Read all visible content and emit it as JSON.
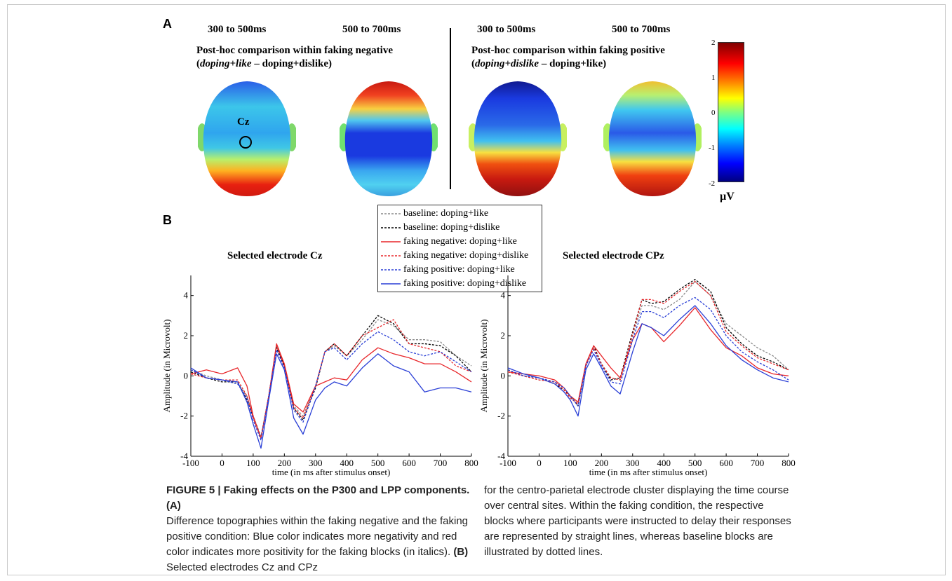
{
  "panel_a": {
    "letter": "A",
    "time_labels": [
      "300 to 500ms",
      "500 to 700ms",
      "300 to 500ms",
      "500 to 700ms"
    ],
    "left_title_line1": "Post-hoc comparison within faking negative",
    "left_title_italic": "doping+like",
    "left_title_rest": " – doping+dislike)",
    "right_title_line1": "Post-hoc comparison within faking positive",
    "right_title_italic": "doping+dislike",
    "right_title_rest": " – doping+like)",
    "electrode_marker": "Cz",
    "colorbar": {
      "ticks": [
        "2",
        "1",
        "0",
        "-1",
        "-2"
      ],
      "unit": "µV"
    }
  },
  "panel_b": {
    "letter": "B",
    "legend": [
      {
        "label": "baseline: doping+like",
        "color": "#888888",
        "dash": "dotted"
      },
      {
        "label": "baseline: doping+dislike",
        "color": "#000000",
        "dash": "dotted"
      },
      {
        "label": "faking negative: doping+like",
        "color": "#e8262a",
        "dash": "solid"
      },
      {
        "label": "faking negative: doping+dislike",
        "color": "#e8262a",
        "dash": "dotted"
      },
      {
        "label": "faking positive: doping+like",
        "color": "#2a3fd6",
        "dash": "dotted"
      },
      {
        "label": "faking positive: doping+dislike",
        "color": "#2a3fd6",
        "dash": "solid"
      }
    ]
  },
  "chart_data": [
    {
      "type": "line",
      "title": "Selected electrode Cz",
      "xlabel": "time (in ms after stimulus onset)",
      "ylabel": "Amplitude (in Microvolt)",
      "xlim": [
        -100,
        800
      ],
      "ylim": [
        -4,
        5
      ],
      "xticks": [
        "-100",
        "0",
        "100",
        "200",
        "300",
        "400",
        "500",
        "600",
        "700",
        "800"
      ],
      "yticks": [
        "4",
        "2",
        "0",
        "-2",
        "-4"
      ],
      "x": [
        -100,
        -50,
        0,
        50,
        80,
        100,
        125,
        150,
        175,
        200,
        230,
        260,
        300,
        330,
        360,
        400,
        450,
        500,
        550,
        600,
        650,
        700,
        750,
        800
      ],
      "series": [
        {
          "name": "baseline: doping+like",
          "values": [
            0.3,
            0.0,
            -0.2,
            -0.4,
            -1.0,
            -2.0,
            -3.0,
            -1.0,
            1.5,
            0.5,
            -1.5,
            -2.0,
            -0.5,
            1.2,
            1.5,
            1.0,
            1.8,
            2.8,
            2.5,
            1.8,
            1.8,
            1.7,
            1.0,
            0.5
          ]
        },
        {
          "name": "baseline: doping+dislike",
          "values": [
            0.2,
            -0.1,
            -0.3,
            -0.3,
            -1.2,
            -2.0,
            -3.1,
            -1.0,
            1.4,
            0.5,
            -1.6,
            -2.2,
            -0.6,
            1.2,
            1.6,
            1.0,
            2.0,
            3.0,
            2.6,
            1.6,
            1.6,
            1.5,
            1.0,
            0.2
          ]
        },
        {
          "name": "faking negative: doping+like",
          "values": [
            0.1,
            0.3,
            0.1,
            0.4,
            -0.5,
            -2.0,
            -3.1,
            -1.0,
            1.6,
            0.6,
            -1.4,
            -1.8,
            -0.5,
            -0.3,
            -0.1,
            -0.2,
            0.8,
            1.4,
            1.1,
            0.9,
            0.6,
            0.6,
            0.2,
            -0.3
          ]
        },
        {
          "name": "faking negative: doping+dislike",
          "values": [
            0.1,
            -0.1,
            -0.2,
            -0.2,
            -1.0,
            -2.1,
            -3.1,
            -1.0,
            1.5,
            0.5,
            -1.6,
            -2.1,
            -0.5,
            1.2,
            1.6,
            1.0,
            2.0,
            2.4,
            2.8,
            1.6,
            1.4,
            1.2,
            0.5,
            0.2
          ]
        },
        {
          "name": "faking positive: doping+like",
          "values": [
            0.3,
            -0.1,
            -0.2,
            -0.4,
            -1.1,
            -2.2,
            -3.2,
            -1.0,
            1.3,
            0.4,
            -1.7,
            -2.3,
            -0.5,
            1.2,
            1.4,
            0.8,
            1.6,
            2.2,
            1.8,
            1.2,
            1.0,
            1.2,
            0.7,
            0.2
          ]
        },
        {
          "name": "faking positive: doping+dislike",
          "values": [
            0.4,
            -0.1,
            -0.2,
            -0.3,
            -1.3,
            -2.4,
            -3.6,
            -1.2,
            1.1,
            0.3,
            -2.1,
            -2.9,
            -1.2,
            -0.6,
            -0.3,
            -0.5,
            0.4,
            1.1,
            0.5,
            0.2,
            -0.8,
            -0.6,
            -0.6,
            -0.8
          ]
        }
      ]
    },
    {
      "type": "line",
      "title": "Selected electrode CPz",
      "xlabel": "time (in ms after stimulus onset)",
      "ylabel": "Amplitude (in Microvolt)",
      "xlim": [
        -100,
        800
      ],
      "ylim": [
        -4,
        5
      ],
      "xticks": [
        "-100",
        "0",
        "100",
        "200",
        "300",
        "400",
        "500",
        "600",
        "700",
        "800"
      ],
      "yticks": [
        "4",
        "2",
        "0",
        "-2",
        "-4"
      ],
      "x": [
        -100,
        -50,
        0,
        50,
        80,
        100,
        125,
        150,
        175,
        200,
        230,
        260,
        300,
        330,
        360,
        400,
        450,
        500,
        550,
        600,
        650,
        700,
        750,
        800
      ],
      "series": [
        {
          "name": "baseline: doping+like",
          "values": [
            0.2,
            0.0,
            -0.2,
            -0.3,
            -0.6,
            -1.0,
            -1.4,
            0.5,
            1.4,
            0.6,
            -0.1,
            -0.2,
            2.0,
            3.5,
            3.5,
            3.3,
            3.8,
            4.7,
            4.0,
            2.6,
            2.0,
            1.4,
            1.0,
            0.3
          ]
        },
        {
          "name": "baseline: doping+dislike",
          "values": [
            0.3,
            0.0,
            -0.1,
            -0.4,
            -0.7,
            -1.0,
            -1.5,
            0.5,
            1.5,
            0.6,
            -0.2,
            -0.1,
            2.2,
            3.8,
            3.6,
            3.7,
            4.3,
            4.8,
            4.2,
            2.4,
            1.6,
            1.0,
            0.7,
            0.3
          ]
        },
        {
          "name": "faking negative: doping+like",
          "values": [
            0.2,
            0.1,
            0.0,
            -0.2,
            -0.6,
            -1.0,
            -1.3,
            0.6,
            1.5,
            1.0,
            0.4,
            -0.1,
            1.8,
            2.6,
            2.4,
            1.7,
            2.5,
            3.4,
            2.3,
            1.4,
            1.0,
            0.4,
            0.1,
            0.0
          ]
        },
        {
          "name": "faking negative: doping+dislike",
          "values": [
            0.2,
            0.0,
            -0.2,
            -0.3,
            -0.7,
            -1.1,
            -1.4,
            0.5,
            1.4,
            0.6,
            -0.1,
            -0.2,
            2.1,
            3.8,
            3.8,
            3.6,
            4.2,
            4.7,
            4.0,
            2.2,
            1.5,
            0.9,
            0.6,
            0.3
          ]
        },
        {
          "name": "faking positive: doping+like",
          "values": [
            0.3,
            0.0,
            -0.1,
            -0.3,
            -0.6,
            -1.0,
            -1.5,
            0.5,
            1.3,
            0.5,
            -0.3,
            -0.4,
            1.8,
            3.2,
            3.2,
            2.9,
            3.5,
            3.9,
            3.3,
            2.0,
            1.2,
            0.7,
            0.3,
            -0.2
          ]
        },
        {
          "name": "faking positive: doping+dislike",
          "values": [
            0.4,
            0.1,
            -0.1,
            -0.4,
            -0.8,
            -1.2,
            -2.0,
            0.3,
            1.1,
            0.4,
            -0.5,
            -0.9,
            1.2,
            2.6,
            2.4,
            2.0,
            2.8,
            3.5,
            2.6,
            1.5,
            0.8,
            0.3,
            -0.1,
            -0.3
          ]
        }
      ]
    }
  ],
  "caption": {
    "label": "FIGURE 5 | Faking effects on the P300 and LPP components. (A)",
    "col1_text": "Difference topographies within the faking negative and the faking positive condition: Blue color indicates more negativity and red color indicates more positivity for the faking blocks (in italics).",
    "col1_b_label": "(B)",
    "col1_tail": " Selected electrodes Cz and CPz",
    "col2_text": "for the centro-parietal electrode cluster displaying the time course over central sites. Within the faking condition, the respective blocks where participants were instructed to delay their responses are represented by straight lines, whereas baseline blocks are illustrated by dotted lines."
  }
}
